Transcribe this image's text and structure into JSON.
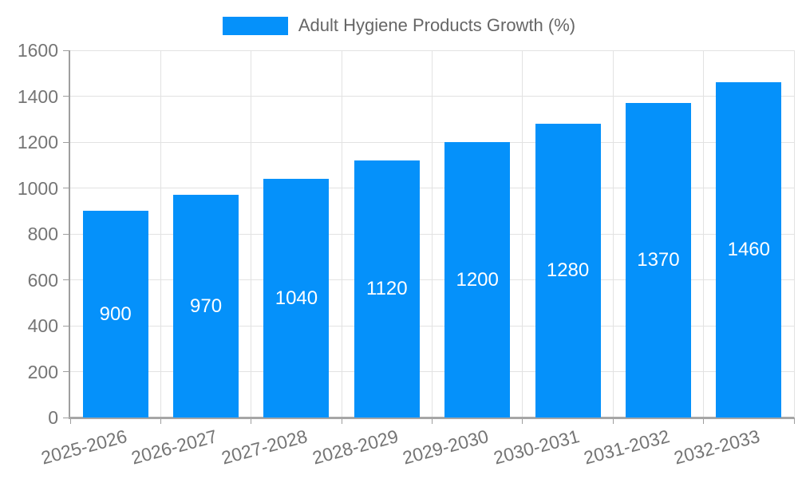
{
  "chart_data": {
    "type": "bar",
    "title": "Adult Hygiene Products Growth (%)",
    "categories": [
      "2025-2026",
      "2026-2027",
      "2027-2028",
      "2028-2029",
      "2029-2030",
      "2030-2031",
      "2031-2032",
      "2032-2033"
    ],
    "values": [
      900,
      970,
      1040,
      1120,
      1200,
      1280,
      1370,
      1460
    ],
    "value_labels": [
      "900",
      "970",
      "1040",
      "1120",
      "1200",
      "1280",
      "1370",
      "1460"
    ],
    "xlabel": "",
    "ylabel": "",
    "ylim": [
      0,
      1600
    ],
    "yticks": [
      0,
      200,
      400,
      600,
      800,
      1000,
      1200,
      1400,
      1600
    ],
    "grid": true,
    "legend_position": "top",
    "bar_color": "#0591fa",
    "value_label_color": "#ffffff",
    "axis_text_color": "#757575",
    "legend_text_color": "#666666",
    "grid_color": "#e2e2e2",
    "axis_line_color": "#9e9e9e"
  }
}
